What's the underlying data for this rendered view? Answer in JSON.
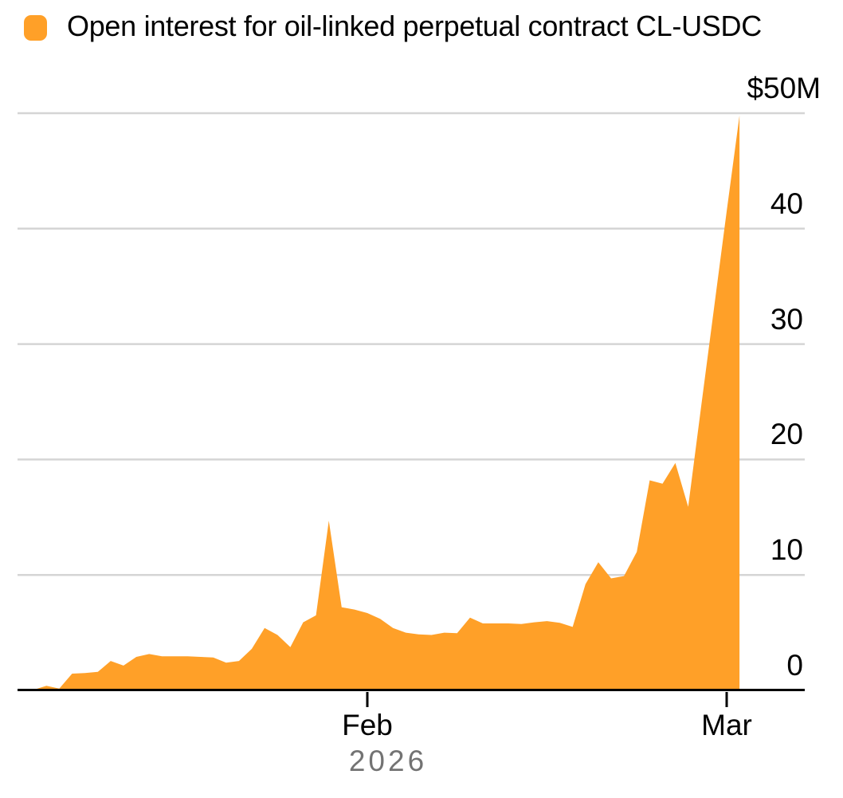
{
  "legend": {
    "label": "Open interest for oil-linked perpetual contract CL-USDC",
    "swatch_color": "#FFA028"
  },
  "colors": {
    "area": "#FFA028",
    "grid": "#D5D5D5",
    "axis": "#000000",
    "text": "#000000",
    "muted_text": "#737373",
    "background": "#FFFFFF"
  },
  "chart_data": {
    "type": "area",
    "title": "Open interest for oil-linked perpetual contract CL-USDC",
    "unit": "USD millions",
    "ylim": [
      0,
      50
    ],
    "grid": "horizontal",
    "legend_position": "top-left",
    "yticks": {
      "values": [
        0,
        10,
        20,
        30,
        40,
        50
      ],
      "labels": [
        "0",
        "10",
        "20",
        "30",
        "40",
        "$50M"
      ]
    },
    "xticks": [
      {
        "label": "Feb",
        "date": "Feb 1"
      },
      {
        "label": "Mar",
        "date": "Mar 1"
      }
    ],
    "year_label": "2026",
    "dates": [
      "Jan 6",
      "Jan 7",
      "Jan 8",
      "Jan 9",
      "Jan 10",
      "Jan 11",
      "Jan 12",
      "Jan 13",
      "Jan 14",
      "Jan 15",
      "Jan 16",
      "Jan 17",
      "Jan 18",
      "Jan 19",
      "Jan 20",
      "Jan 21",
      "Jan 22",
      "Jan 23",
      "Jan 24",
      "Jan 25",
      "Jan 26",
      "Jan 27",
      "Jan 28",
      "Jan 29",
      "Jan 30",
      "Jan 31",
      "Feb 1",
      "Feb 2",
      "Feb 3",
      "Feb 4",
      "Feb 5",
      "Feb 6",
      "Feb 7",
      "Feb 8",
      "Feb 9",
      "Feb 10",
      "Feb 11",
      "Feb 12",
      "Feb 13",
      "Feb 14",
      "Feb 15",
      "Feb 16",
      "Feb 17",
      "Feb 18",
      "Feb 19",
      "Feb 20",
      "Feb 21",
      "Feb 22",
      "Feb 23",
      "Feb 24",
      "Feb 25",
      "Feb 26",
      "Feb 27",
      "Feb 28",
      "Mar 1",
      "Mar 2"
    ],
    "values": [
      0.05,
      0.4,
      0.15,
      1.45,
      1.5,
      1.6,
      2.55,
      2.15,
      2.9,
      3.15,
      2.95,
      2.95,
      2.95,
      2.9,
      2.85,
      2.4,
      2.55,
      3.6,
      5.4,
      4.8,
      3.75,
      5.9,
      6.5,
      14.7,
      7.2,
      7.0,
      6.7,
      6.2,
      5.4,
      5.0,
      4.85,
      4.8,
      5.0,
      4.95,
      6.3,
      5.8,
      5.8,
      5.8,
      5.75,
      5.9,
      6.0,
      5.85,
      5.5,
      9.2,
      11.1,
      9.7,
      9.9,
      12.0,
      18.2,
      17.9,
      19.7,
      15.9,
      24.5,
      33.0,
      41.5,
      49.8
    ]
  }
}
